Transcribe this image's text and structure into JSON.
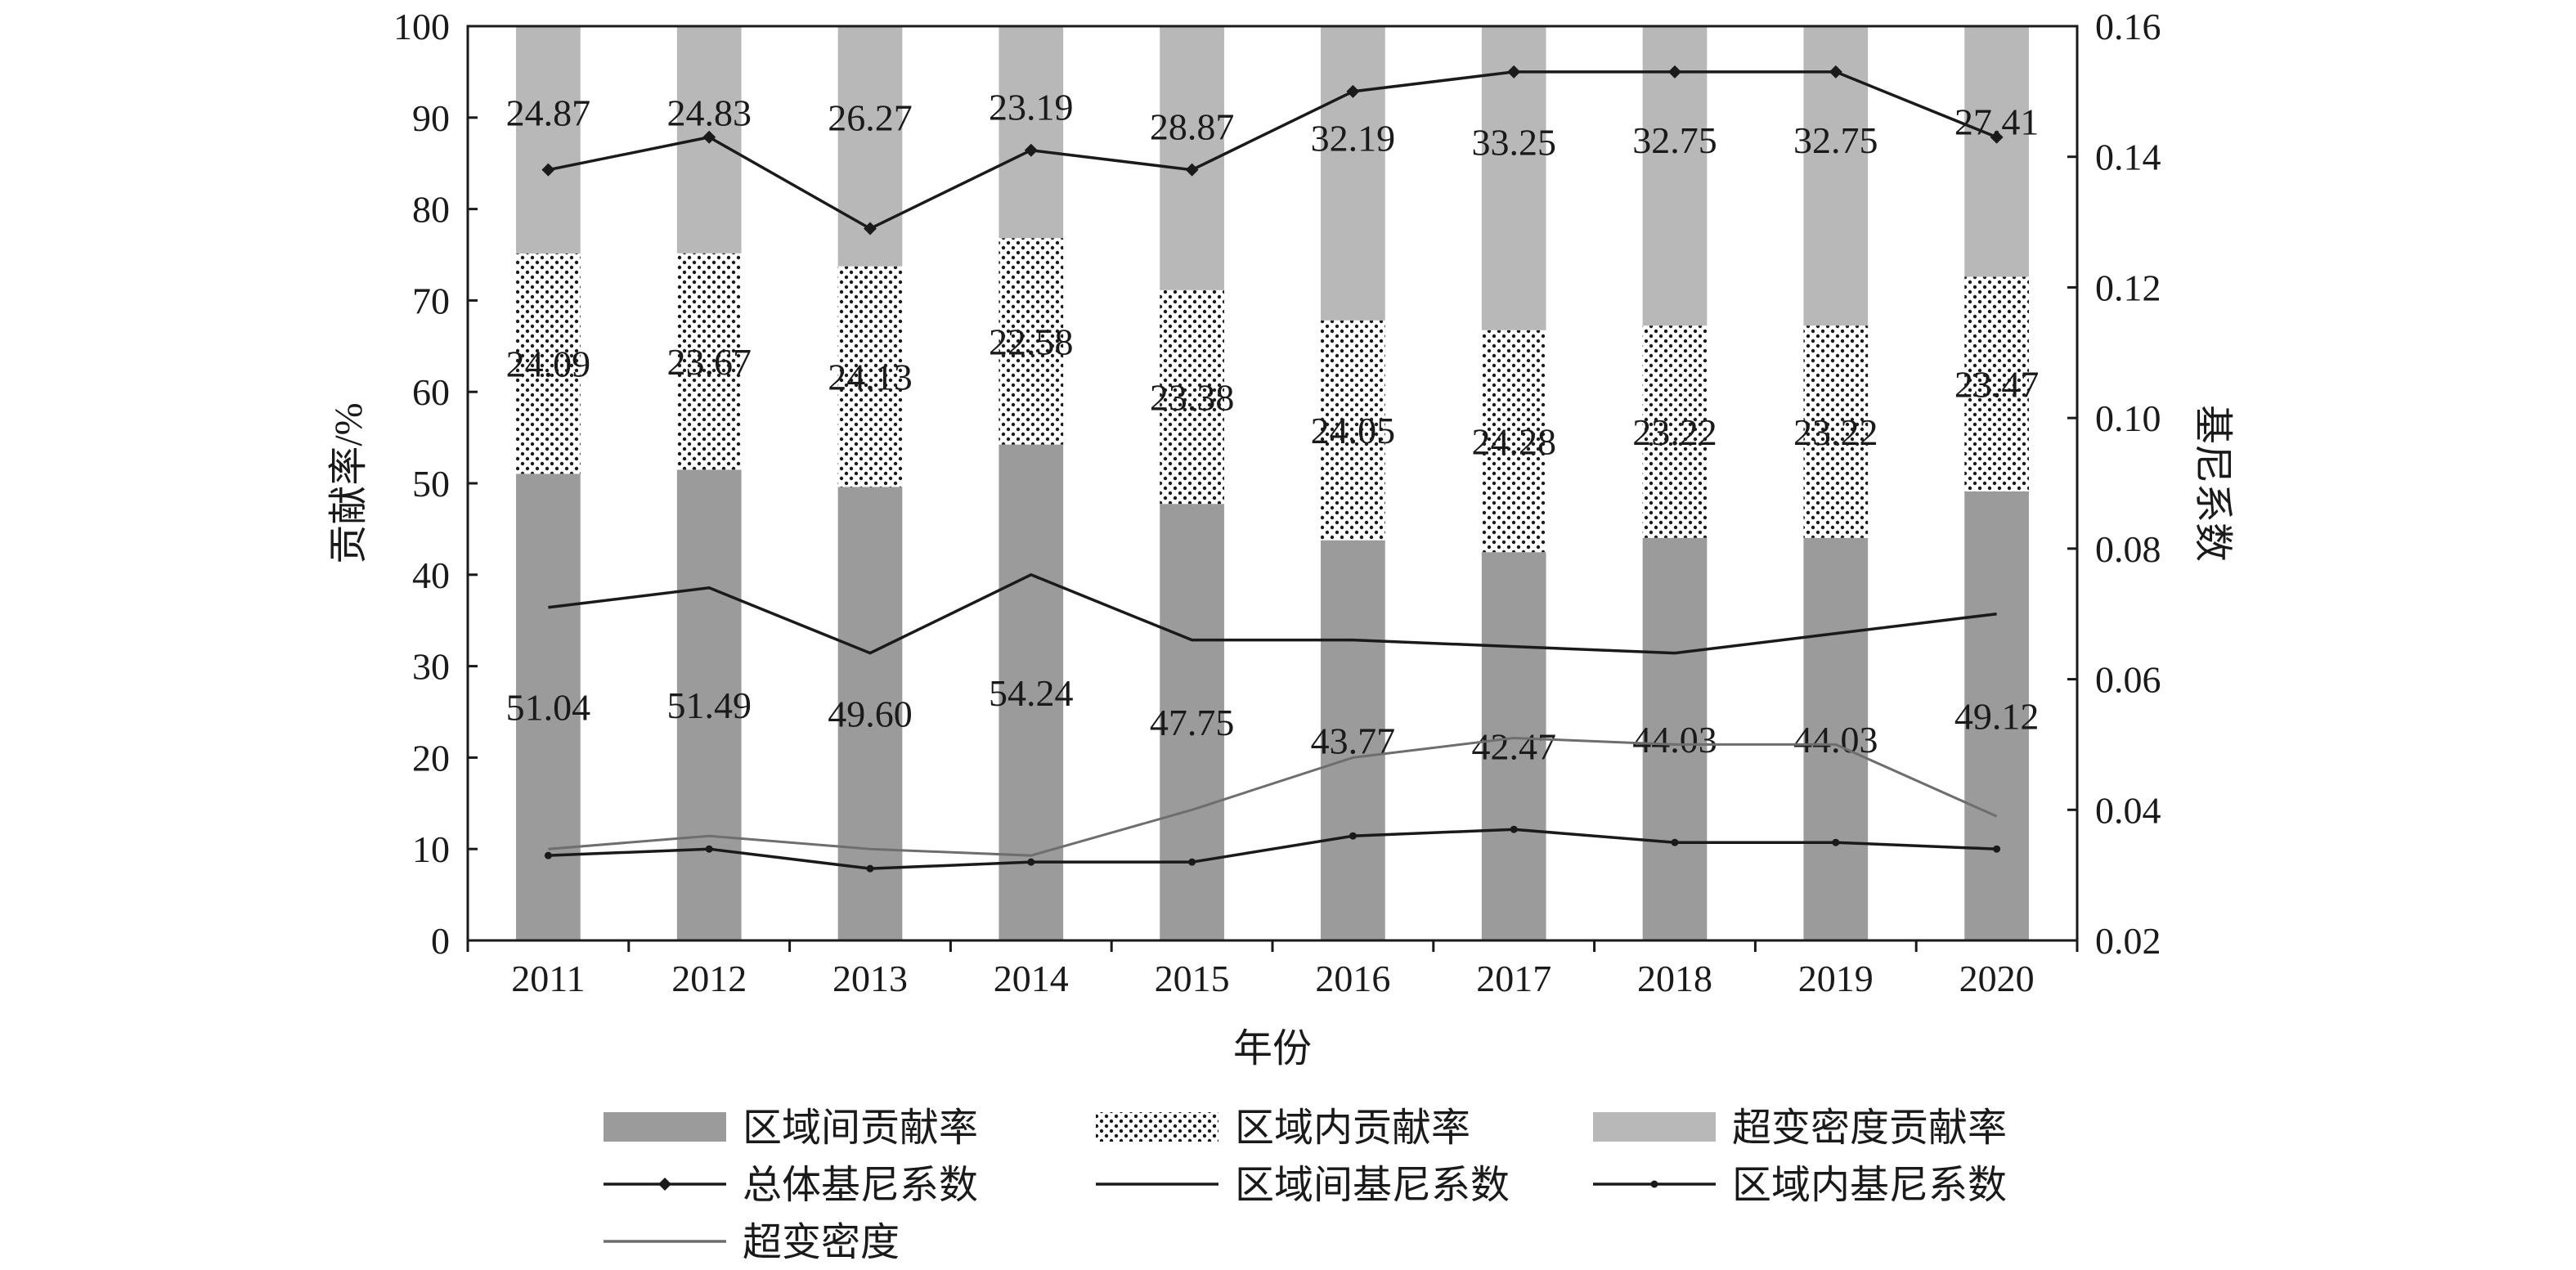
{
  "chart_data": {
    "type": "bar",
    "categories": [
      "2011",
      "2012",
      "2013",
      "2014",
      "2015",
      "2016",
      "2017",
      "2018",
      "2019",
      "2020"
    ],
    "xlabel": "年份",
    "ylabel_left": "贡献率/%",
    "ylabel_right": "基尼系数",
    "ylim_left": [
      0,
      100
    ],
    "yticks_left": [
      0,
      10,
      20,
      30,
      40,
      50,
      60,
      70,
      80,
      90,
      100
    ],
    "ylim_right": [
      0.02,
      0.16
    ],
    "yticks_right": [
      "0.02",
      "0.04",
      "0.06",
      "0.08",
      "0.10",
      "0.12",
      "0.14",
      "0.16"
    ],
    "stacked_bars": [
      {
        "name": "区域间贡献率",
        "fill": "solid",
        "color": "#9b9b9b",
        "values": [
          51.04,
          51.49,
          49.6,
          54.24,
          47.75,
          43.77,
          42.47,
          44.03,
          44.03,
          49.12
        ],
        "labels": [
          "51.04",
          "51.49",
          "49.60",
          "54.24",
          "47.75",
          "43.77",
          "42.47",
          "44.03",
          "44.03",
          "49.12"
        ]
      },
      {
        "name": "区域内贡献率",
        "fill": "dotted",
        "color": "#ffffff",
        "values": [
          24.09,
          23.67,
          24.13,
          22.58,
          23.38,
          24.05,
          24.28,
          23.22,
          23.22,
          23.47
        ],
        "labels": [
          "24.09",
          "23.67",
          "24.13",
          "22.58",
          "23.38",
          "24.05",
          "24.28",
          "23.22",
          "23.22",
          "23.47"
        ]
      },
      {
        "name": "超变密度贡献率",
        "fill": "solid",
        "color": "#b8b8b8",
        "values": [
          24.87,
          24.83,
          26.27,
          23.19,
          28.87,
          32.19,
          33.25,
          32.75,
          32.75,
          27.41
        ],
        "labels": [
          "24.87",
          "24.83",
          "26.27",
          "23.19",
          "28.87",
          "32.19",
          "33.25",
          "32.75",
          "32.75",
          "27.41"
        ]
      }
    ],
    "lines": [
      {
        "name": "总体基尼系数",
        "axis": "right",
        "color": "#1a1a1a",
        "marker": "diamond",
        "values": [
          0.138,
          0.143,
          0.129,
          0.141,
          0.138,
          0.15,
          0.153,
          0.153,
          0.153,
          0.143
        ]
      },
      {
        "name": "区域间基尼系数",
        "axis": "right",
        "color": "#1a1a1a",
        "marker": "none",
        "values": [
          0.071,
          0.074,
          0.064,
          0.076,
          0.066,
          0.066,
          0.065,
          0.064,
          0.067,
          0.07
        ]
      },
      {
        "name": "区域内基尼系数",
        "axis": "right",
        "color": "#1a1a1a",
        "marker": "dot",
        "values": [
          0.033,
          0.034,
          0.031,
          0.032,
          0.032,
          0.036,
          0.037,
          0.035,
          0.035,
          0.034
        ]
      },
      {
        "name": "超变密度",
        "axis": "right",
        "color": "#6e6e6e",
        "marker": "none",
        "values": [
          0.034,
          0.036,
          0.034,
          0.033,
          0.04,
          0.048,
          0.051,
          0.05,
          0.05,
          0.039
        ]
      }
    ],
    "legend_position": "bottom",
    "grid": false
  }
}
